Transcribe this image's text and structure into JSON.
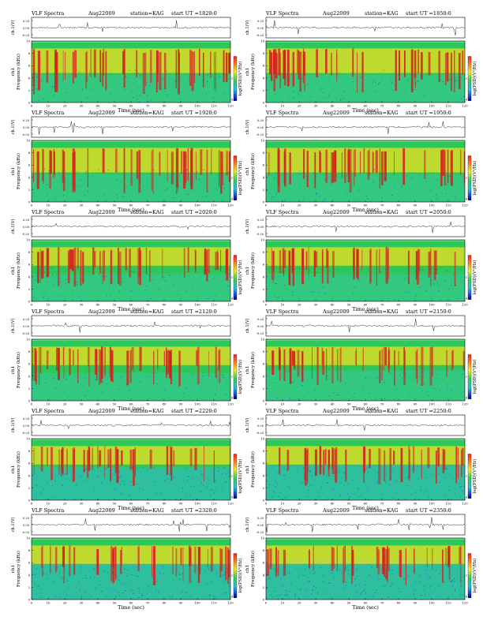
{
  "header": {
    "title": "VLF Spectra",
    "date": "Aug22009",
    "station": "station=KAG",
    "start_prefix": "start  UT ="
  },
  "axis_labels": {
    "top_channel": "ch.1(V)",
    "channel": "ch1",
    "frequency": "Frequency (kHz)",
    "time": "Time (sec)",
    "colorbar": "log(PSD)(V²/Hz)"
  },
  "top_ticks": [
    "0.20",
    "0.00",
    "-0.20"
  ],
  "colorbar_ticks": [
    "-2",
    "-4"
  ],
  "colors": {
    "high": "#d42020",
    "mid": "#f0e020",
    "base": "#2ec85a",
    "low": "#20b0e0",
    "bg_band": "#33cc66"
  },
  "chart_data": [
    {
      "type": "heatmap",
      "start_ut": "1820:0",
      "xlabel": "Time (sec)",
      "ylabel": "Frequency (kHz)",
      "xlim": [
        0,
        120
      ],
      "ylim": [
        0,
        10
      ],
      "x_ticks": [
        0,
        10,
        20,
        30,
        40,
        50,
        60,
        70,
        80,
        90,
        100,
        110,
        120
      ],
      "y_ticks": [
        0,
        2,
        4,
        6,
        8,
        10
      ],
      "top_trace_ylim": [
        -0.2,
        0.2
      ]
    },
    {
      "type": "heatmap",
      "start_ut": "1850:0",
      "xlabel": "Time (sec)",
      "ylabel": "Frequency (kHz)",
      "xlim": [
        0,
        120
      ],
      "ylim": [
        0,
        10
      ],
      "x_ticks": [
        0,
        10,
        20,
        30,
        40,
        50,
        60,
        70,
        80,
        90,
        100,
        110,
        120
      ],
      "y_ticks": [
        0,
        2,
        4,
        6,
        8,
        10
      ],
      "top_trace_ylim": [
        -0.2,
        0.2
      ]
    },
    {
      "type": "heatmap",
      "start_ut": "1920:0",
      "xlabel": "Time (sec)",
      "ylabel": "Frequency (kHz)",
      "xlim": [
        0,
        120
      ],
      "ylim": [
        0,
        10
      ],
      "x_ticks": [
        0,
        10,
        20,
        30,
        40,
        50,
        60,
        70,
        80,
        90,
        100,
        110,
        120
      ],
      "y_ticks": [
        0,
        2,
        4,
        6,
        8,
        10
      ],
      "top_trace_ylim": [
        -0.2,
        0.2
      ]
    },
    {
      "type": "heatmap",
      "start_ut": "1950:0",
      "xlabel": "Time (sec)",
      "ylabel": "Frequency (kHz)",
      "xlim": [
        0,
        120
      ],
      "ylim": [
        0,
        10
      ],
      "x_ticks": [
        0,
        10,
        20,
        30,
        40,
        50,
        60,
        70,
        80,
        90,
        100,
        110,
        120
      ],
      "y_ticks": [
        0,
        2,
        4,
        6,
        8,
        10
      ],
      "top_trace_ylim": [
        -0.2,
        0.2
      ]
    },
    {
      "type": "heatmap",
      "start_ut": "2020:0",
      "xlabel": "Time (sec)",
      "ylabel": "Frequency (kHz)",
      "xlim": [
        0,
        120
      ],
      "ylim": [
        0,
        10
      ],
      "x_ticks": [
        0,
        10,
        20,
        30,
        40,
        50,
        60,
        70,
        80,
        90,
        100,
        110,
        120
      ],
      "y_ticks": [
        0,
        2,
        4,
        6,
        8,
        10
      ],
      "top_trace_ylim": [
        -0.2,
        0.2
      ]
    },
    {
      "type": "heatmap",
      "start_ut": "2050:0",
      "xlabel": "Time (sec)",
      "ylabel": "Frequency (kHz)",
      "xlim": [
        0,
        120
      ],
      "ylim": [
        0,
        10
      ],
      "x_ticks": [
        0,
        10,
        20,
        30,
        40,
        50,
        60,
        70,
        80,
        90,
        100,
        110,
        120
      ],
      "y_ticks": [
        0,
        2,
        4,
        6,
        8,
        10
      ],
      "top_trace_ylim": [
        -0.2,
        0.2
      ]
    },
    {
      "type": "heatmap",
      "start_ut": "2120:0",
      "xlabel": "Time (sec)",
      "ylabel": "Frequency (kHz)",
      "xlim": [
        0,
        120
      ],
      "ylim": [
        0,
        10
      ],
      "x_ticks": [
        0,
        10,
        20,
        30,
        40,
        50,
        60,
        70,
        80,
        90,
        100,
        110,
        120
      ],
      "y_ticks": [
        0,
        2,
        4,
        6,
        8,
        10
      ],
      "top_trace_ylim": [
        -0.2,
        0.2
      ]
    },
    {
      "type": "heatmap",
      "start_ut": "2150:0",
      "xlabel": "Time (sec)",
      "ylabel": "Frequency (kHz)",
      "xlim": [
        0,
        120
      ],
      "ylim": [
        0,
        10
      ],
      "x_ticks": [
        0,
        10,
        20,
        30,
        40,
        50,
        60,
        70,
        80,
        90,
        100,
        110,
        120
      ],
      "y_ticks": [
        0,
        2,
        4,
        6,
        8,
        10
      ],
      "top_trace_ylim": [
        -0.2,
        0.2
      ]
    },
    {
      "type": "heatmap",
      "start_ut": "2220:0",
      "xlabel": "Time (sec)",
      "ylabel": "Frequency (kHz)",
      "xlim": [
        0,
        120
      ],
      "ylim": [
        0,
        10
      ],
      "x_ticks": [
        0,
        10,
        20,
        30,
        40,
        50,
        60,
        70,
        80,
        90,
        100,
        110,
        120
      ],
      "y_ticks": [
        0,
        2,
        4,
        6,
        8,
        10
      ],
      "top_trace_ylim": [
        -0.2,
        0.2
      ]
    },
    {
      "type": "heatmap",
      "start_ut": "2250:0",
      "xlabel": "Time (sec)",
      "ylabel": "Frequency (kHz)",
      "xlim": [
        0,
        120
      ],
      "ylim": [
        0,
        10
      ],
      "x_ticks": [
        0,
        10,
        20,
        30,
        40,
        50,
        60,
        70,
        80,
        90,
        100,
        110,
        120
      ],
      "y_ticks": [
        0,
        2,
        4,
        6,
        8,
        10
      ],
      "top_trace_ylim": [
        -0.2,
        0.2
      ]
    },
    {
      "type": "heatmap",
      "start_ut": "2320:0",
      "xlabel": "Time (sec)",
      "ylabel": "Frequency (kHz)",
      "xlim": [
        0,
        120
      ],
      "ylim": [
        0,
        10
      ],
      "x_ticks": [
        0,
        10,
        20,
        30,
        40,
        50,
        60,
        70,
        80,
        90,
        100,
        110,
        120
      ],
      "y_ticks": [
        0,
        2,
        4,
        6,
        8,
        10
      ],
      "top_trace_ylim": [
        -0.2,
        0.2
      ]
    },
    {
      "type": "heatmap",
      "start_ut": "2350:0",
      "xlabel": "Time (sec)",
      "ylabel": "Frequency (kHz)",
      "xlim": [
        0,
        120
      ],
      "ylim": [
        0,
        10
      ],
      "x_ticks": [
        0,
        10,
        20,
        30,
        40,
        50,
        60,
        70,
        80,
        90,
        100,
        110,
        120
      ],
      "y_ticks": [
        0,
        2,
        4,
        6,
        8,
        10
      ],
      "top_trace_ylim": [
        -0.2,
        0.2
      ]
    }
  ]
}
